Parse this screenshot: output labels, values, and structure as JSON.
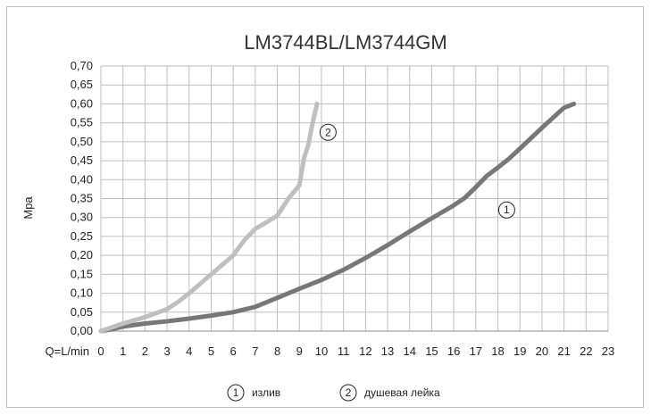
{
  "chart_data": {
    "type": "line",
    "title": "LM3744BL/LM3744GM",
    "xlabel": "Q=L/min",
    "ylabel": "Mpa",
    "xlim": [
      0,
      23
    ],
    "ylim": [
      0,
      0.7
    ],
    "x_ticks": [
      "0",
      "1",
      "2",
      "3",
      "4",
      "5",
      "6",
      "7",
      "8",
      "9",
      "10",
      "11",
      "12",
      "13",
      "14",
      "15",
      "16",
      "17",
      "18",
      "19",
      "20",
      "21",
      "22",
      "23"
    ],
    "y_ticks": [
      "0,00",
      "0,05",
      "0,10",
      "0,15",
      "0,20",
      "0,25",
      "0,30",
      "0,35",
      "0,40",
      "0,45",
      "0,50",
      "0,55",
      "0,60",
      "0,65",
      "0,70"
    ],
    "grid": true,
    "legend_position": "bottom",
    "series": [
      {
        "marker": "1",
        "name": "излив",
        "color": "#777777",
        "points": [
          [
            0,
            0
          ],
          [
            0.5,
            0.005
          ],
          [
            1,
            0.012
          ],
          [
            2,
            0.02
          ],
          [
            3,
            0.026
          ],
          [
            4,
            0.033
          ],
          [
            5,
            0.041
          ],
          [
            6,
            0.05
          ],
          [
            7,
            0.064
          ],
          [
            8,
            0.088
          ],
          [
            9,
            0.112
          ],
          [
            10,
            0.135
          ],
          [
            11,
            0.162
          ],
          [
            12,
            0.193
          ],
          [
            13,
            0.227
          ],
          [
            14,
            0.263
          ],
          [
            15,
            0.298
          ],
          [
            16,
            0.332
          ],
          [
            16.5,
            0.352
          ],
          [
            17,
            0.38
          ],
          [
            17.5,
            0.41
          ],
          [
            18,
            0.432
          ],
          [
            18.5,
            0.455
          ],
          [
            19,
            0.482
          ],
          [
            20,
            0.537
          ],
          [
            21,
            0.59
          ],
          [
            21.45,
            0.6
          ]
        ]
      },
      {
        "marker": "2",
        "name": "душевая лейка",
        "color": "#bfbfbf",
        "points": [
          [
            0,
            0
          ],
          [
            1,
            0.02
          ],
          [
            2,
            0.037
          ],
          [
            3,
            0.058
          ],
          [
            3.5,
            0.077
          ],
          [
            4,
            0.1
          ],
          [
            4.5,
            0.125
          ],
          [
            5,
            0.15
          ],
          [
            5.5,
            0.175
          ],
          [
            6,
            0.2
          ],
          [
            6.5,
            0.24
          ],
          [
            7,
            0.27
          ],
          [
            7.5,
            0.287
          ],
          [
            8,
            0.305
          ],
          [
            8.5,
            0.35
          ],
          [
            9,
            0.385
          ],
          [
            9.1,
            0.42
          ],
          [
            9.2,
            0.455
          ],
          [
            9.4,
            0.49
          ],
          [
            9.6,
            0.55
          ],
          [
            9.8,
            0.6
          ]
        ]
      }
    ]
  }
}
